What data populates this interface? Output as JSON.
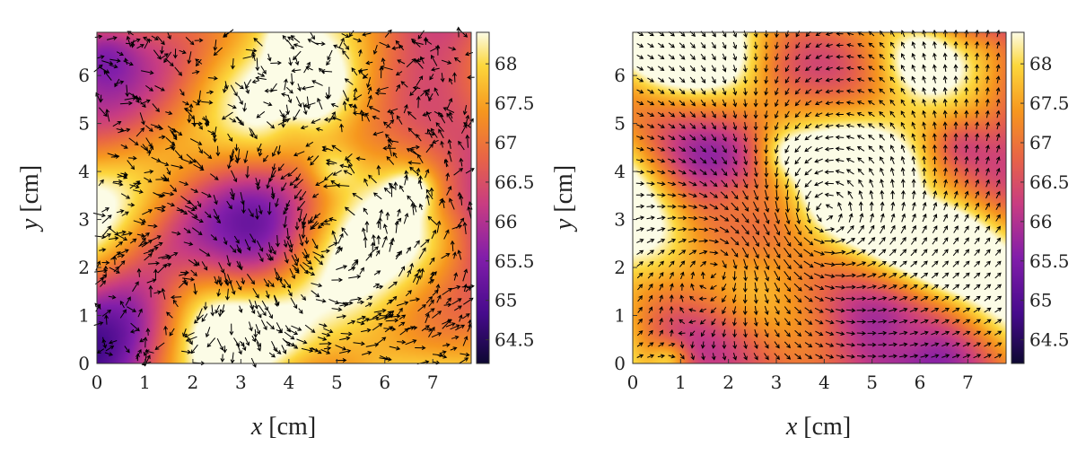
{
  "chart_data": [
    {
      "type": "heatmap",
      "colormap": "plasma-like",
      "xlabel_var": "x",
      "xlabel_unit": "[cm]",
      "ylabel_var": "y",
      "ylabel_unit": "[cm]",
      "xlim": [
        0,
        7.8
      ],
      "ylim": [
        0,
        6.9
      ],
      "xticks": [
        0,
        1,
        2,
        3,
        4,
        5,
        6,
        7
      ],
      "yticks": [
        0,
        1,
        2,
        3,
        4,
        5,
        6
      ],
      "colorbar": {
        "range": [
          64.2,
          68.4
        ],
        "ticks": [
          "64.5",
          "65",
          "65.5",
          "66",
          "66.5",
          "67",
          "67.5",
          "68"
        ]
      },
      "overlay": "quiver (black arrows, scattered)",
      "vortices": [
        {
          "x": 4.7,
          "y": 2.5
        },
        {
          "x": 2.0,
          "y": 1.8
        }
      ]
    },
    {
      "type": "heatmap",
      "colormap": "plasma-like",
      "xlabel_var": "x",
      "xlabel_unit": "[cm]",
      "ylabel_var": "y",
      "ylabel_unit": "[cm]",
      "xlim": [
        0,
        7.8
      ],
      "ylim": [
        0,
        6.9
      ],
      "xticks": [
        0,
        1,
        2,
        3,
        4,
        5,
        6,
        7
      ],
      "yticks": [
        0,
        1,
        2,
        3,
        4,
        5,
        6
      ],
      "colorbar": {
        "range": [
          64.2,
          68.4
        ],
        "ticks": [
          "64.5",
          "65",
          "65.5",
          "66",
          "66.5",
          "67",
          "67.5",
          "68"
        ]
      },
      "overlay": "quiver (black arrows, regular grid)",
      "vortices": [
        {
          "x": 3.9,
          "y": 3.0
        },
        {
          "x": 2.0,
          "y": 2.2
        }
      ]
    }
  ]
}
